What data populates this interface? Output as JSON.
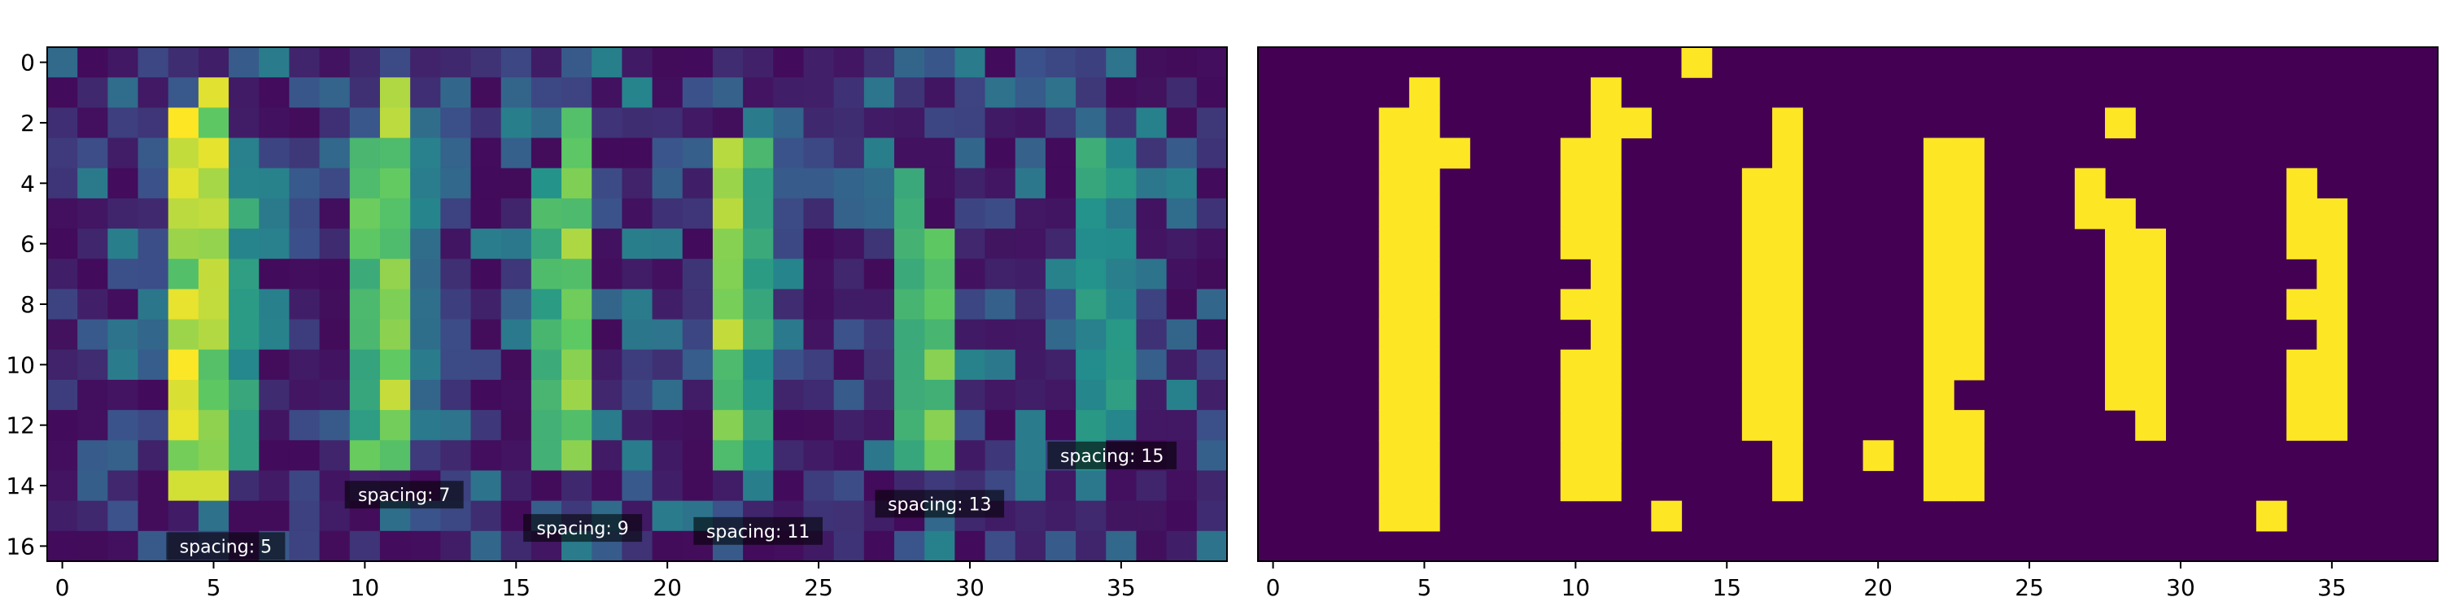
{
  "chart_data": [
    {
      "type": "heatmap",
      "panel": "left",
      "colormap": "viridis",
      "value_range": [
        0,
        1
      ],
      "x_range": [
        -0.5,
        38.5
      ],
      "y_range": [
        -0.5,
        16.5
      ],
      "y_inverted": true,
      "x_ticks": [
        0,
        5,
        10,
        15,
        20,
        25,
        30,
        35
      ],
      "y_ticks": [
        0,
        2,
        4,
        6,
        8,
        10,
        12,
        14,
        16
      ],
      "grid": false,
      "rows": 17,
      "cols": 39,
      "bright_columns": [
        {
          "col": 4,
          "rows": [
            2,
            14
          ],
          "value": 0.98
        },
        {
          "col": 5,
          "rows": [
            1,
            14
          ],
          "value": 0.96
        },
        {
          "col": 6,
          "rows": [
            3,
            13
          ],
          "value": 0.6
        },
        {
          "col": 10,
          "rows": [
            3,
            13
          ],
          "value": 0.75
        },
        {
          "col": 11,
          "rows": [
            1,
            13
          ],
          "value": 0.95
        },
        {
          "col": 12,
          "rows": [
            2,
            12
          ],
          "value": 0.45
        },
        {
          "col": 16,
          "rows": [
            4,
            13
          ],
          "value": 0.7
        },
        {
          "col": 17,
          "rows": [
            2,
            13
          ],
          "value": 0.9
        },
        {
          "col": 22,
          "rows": [
            3,
            13
          ],
          "value": 0.9
        },
        {
          "col": 23,
          "rows": [
            3,
            13
          ],
          "value": 0.65
        },
        {
          "col": 28,
          "rows": [
            4,
            13
          ],
          "value": 0.7
        },
        {
          "col": 29,
          "rows": [
            6,
            13
          ],
          "value": 0.8
        },
        {
          "col": 34,
          "rows": [
            3,
            13
          ],
          "value": 0.6
        },
        {
          "col": 35,
          "rows": [
            3,
            12
          ],
          "value": 0.55
        }
      ],
      "annotations": [
        {
          "text": "spacing: 5",
          "x": 5.4,
          "y": 16.0
        },
        {
          "text": "spacing: 7",
          "x": 11.3,
          "y": 14.3
        },
        {
          "text": "spacing: 9",
          "x": 17.2,
          "y": 15.4
        },
        {
          "text": "spacing: 11",
          "x": 23.0,
          "y": 15.5
        },
        {
          "text": "spacing: 13",
          "x": 29.0,
          "y": 14.6
        },
        {
          "text": "spacing: 15",
          "x": 34.7,
          "y": 13.0
        }
      ]
    },
    {
      "type": "heatmap",
      "panel": "right",
      "colors": {
        "off": "#440154",
        "on": "#fde725"
      },
      "x_range": [
        -0.5,
        38.5
      ],
      "y_range": [
        -0.5,
        16.5
      ],
      "y_inverted": true,
      "x_ticks": [
        0,
        5,
        10,
        15,
        20,
        25,
        30,
        35
      ],
      "grid": false,
      "rows": 17,
      "cols": 39,
      "on_cells": [
        [
          0,
          14
        ],
        [
          1,
          5
        ],
        [
          1,
          11
        ],
        [
          2,
          4
        ],
        [
          2,
          5
        ],
        [
          2,
          11
        ],
        [
          2,
          12
        ],
        [
          2,
          17
        ],
        [
          2,
          28
        ],
        [
          3,
          4
        ],
        [
          3,
          5
        ],
        [
          3,
          6
        ],
        [
          3,
          10
        ],
        [
          3,
          11
        ],
        [
          3,
          17
        ],
        [
          3,
          22
        ],
        [
          3,
          23
        ],
        [
          4,
          4
        ],
        [
          4,
          5
        ],
        [
          4,
          10
        ],
        [
          4,
          11
        ],
        [
          4,
          16
        ],
        [
          4,
          17
        ],
        [
          4,
          22
        ],
        [
          4,
          23
        ],
        [
          4,
          27
        ],
        [
          4,
          34
        ],
        [
          5,
          4
        ],
        [
          5,
          5
        ],
        [
          5,
          10
        ],
        [
          5,
          11
        ],
        [
          5,
          16
        ],
        [
          5,
          17
        ],
        [
          5,
          22
        ],
        [
          5,
          23
        ],
        [
          5,
          27
        ],
        [
          5,
          28
        ],
        [
          5,
          34
        ],
        [
          5,
          35
        ],
        [
          6,
          4
        ],
        [
          6,
          5
        ],
        [
          6,
          10
        ],
        [
          6,
          11
        ],
        [
          6,
          16
        ],
        [
          6,
          17
        ],
        [
          6,
          22
        ],
        [
          6,
          23
        ],
        [
          6,
          28
        ],
        [
          6,
          29
        ],
        [
          6,
          34
        ],
        [
          6,
          35
        ],
        [
          7,
          4
        ],
        [
          7,
          5
        ],
        [
          7,
          11
        ],
        [
          7,
          16
        ],
        [
          7,
          17
        ],
        [
          7,
          22
        ],
        [
          7,
          23
        ],
        [
          7,
          28
        ],
        [
          7,
          29
        ],
        [
          7,
          35
        ],
        [
          8,
          4
        ],
        [
          8,
          5
        ],
        [
          8,
          10
        ],
        [
          8,
          11
        ],
        [
          8,
          16
        ],
        [
          8,
          17
        ],
        [
          8,
          22
        ],
        [
          8,
          23
        ],
        [
          8,
          28
        ],
        [
          8,
          29
        ],
        [
          8,
          34
        ],
        [
          8,
          35
        ],
        [
          9,
          4
        ],
        [
          9,
          5
        ],
        [
          9,
          11
        ],
        [
          9,
          16
        ],
        [
          9,
          17
        ],
        [
          9,
          22
        ],
        [
          9,
          23
        ],
        [
          9,
          28
        ],
        [
          9,
          29
        ],
        [
          9,
          35
        ],
        [
          10,
          4
        ],
        [
          10,
          5
        ],
        [
          10,
          10
        ],
        [
          10,
          11
        ],
        [
          10,
          16
        ],
        [
          10,
          17
        ],
        [
          10,
          22
        ],
        [
          10,
          23
        ],
        [
          10,
          28
        ],
        [
          10,
          29
        ],
        [
          10,
          34
        ],
        [
          10,
          35
        ],
        [
          11,
          4
        ],
        [
          11,
          5
        ],
        [
          11,
          10
        ],
        [
          11,
          11
        ],
        [
          11,
          16
        ],
        [
          11,
          17
        ],
        [
          11,
          22
        ],
        [
          11,
          28
        ],
        [
          11,
          29
        ],
        [
          11,
          34
        ],
        [
          11,
          35
        ],
        [
          12,
          4
        ],
        [
          12,
          5
        ],
        [
          12,
          10
        ],
        [
          12,
          11
        ],
        [
          12,
          16
        ],
        [
          12,
          17
        ],
        [
          12,
          22
        ],
        [
          12,
          23
        ],
        [
          12,
          29
        ],
        [
          12,
          34
        ],
        [
          12,
          35
        ],
        [
          13,
          4
        ],
        [
          13,
          5
        ],
        [
          13,
          10
        ],
        [
          13,
          11
        ],
        [
          13,
          17
        ],
        [
          13,
          20
        ],
        [
          13,
          22
        ],
        [
          13,
          23
        ],
        [
          14,
          4
        ],
        [
          14,
          5
        ],
        [
          14,
          10
        ],
        [
          14,
          11
        ],
        [
          14,
          17
        ],
        [
          14,
          22
        ],
        [
          14,
          23
        ],
        [
          15,
          4
        ],
        [
          15,
          5
        ],
        [
          15,
          13
        ],
        [
          15,
          33
        ]
      ]
    }
  ]
}
